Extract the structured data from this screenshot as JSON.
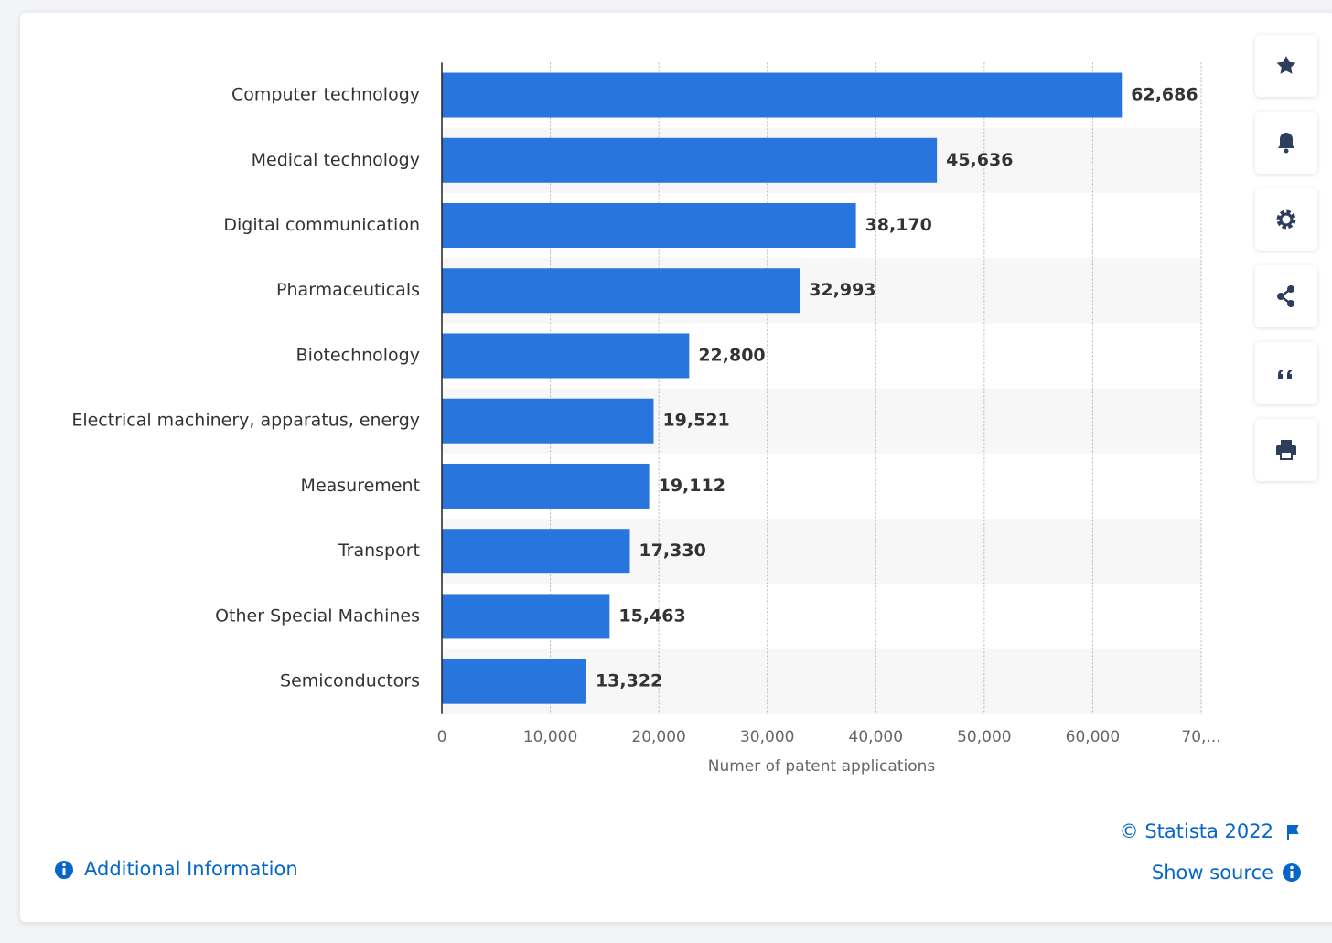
{
  "chart_data": {
    "type": "hbar",
    "categories": [
      "Computer technology",
      "Medical technology",
      "Digital communication",
      "Pharmaceuticals",
      "Biotechnology",
      "Electrical machinery, apparatus, energy",
      "Measurement",
      "Transport",
      "Other Special Machines",
      "Semiconductors"
    ],
    "values": [
      62686,
      45636,
      38170,
      32993,
      22800,
      19521,
      19112,
      17330,
      15463,
      13322
    ],
    "value_labels": [
      "62,686",
      "45,636",
      "38,170",
      "32,993",
      "22,800",
      "19,521",
      "19,112",
      "17,330",
      "15,463",
      "13,322"
    ],
    "color": "#2876dd",
    "x_label": "Numer of patent applications",
    "xlim": [
      0,
      70000
    ],
    "xticks": [
      0,
      {
        "value": 10000,
        "label": "10,000"
      },
      {
        "value": 20000,
        "label": "20,000"
      },
      {
        "value": 30000,
        "label": "30,000"
      },
      {
        "value": 40000,
        "label": "40,000"
      },
      {
        "value": 50000,
        "label": "50,000"
      },
      {
        "value": 60000,
        "label": "60,000"
      },
      {
        "value": 70000,
        "label": "70,..."
      }
    ],
    "grid": true
  },
  "footer": {
    "copyright": "© Statista 2022",
    "show_source": "Show source",
    "additional_info": "Additional Information"
  }
}
